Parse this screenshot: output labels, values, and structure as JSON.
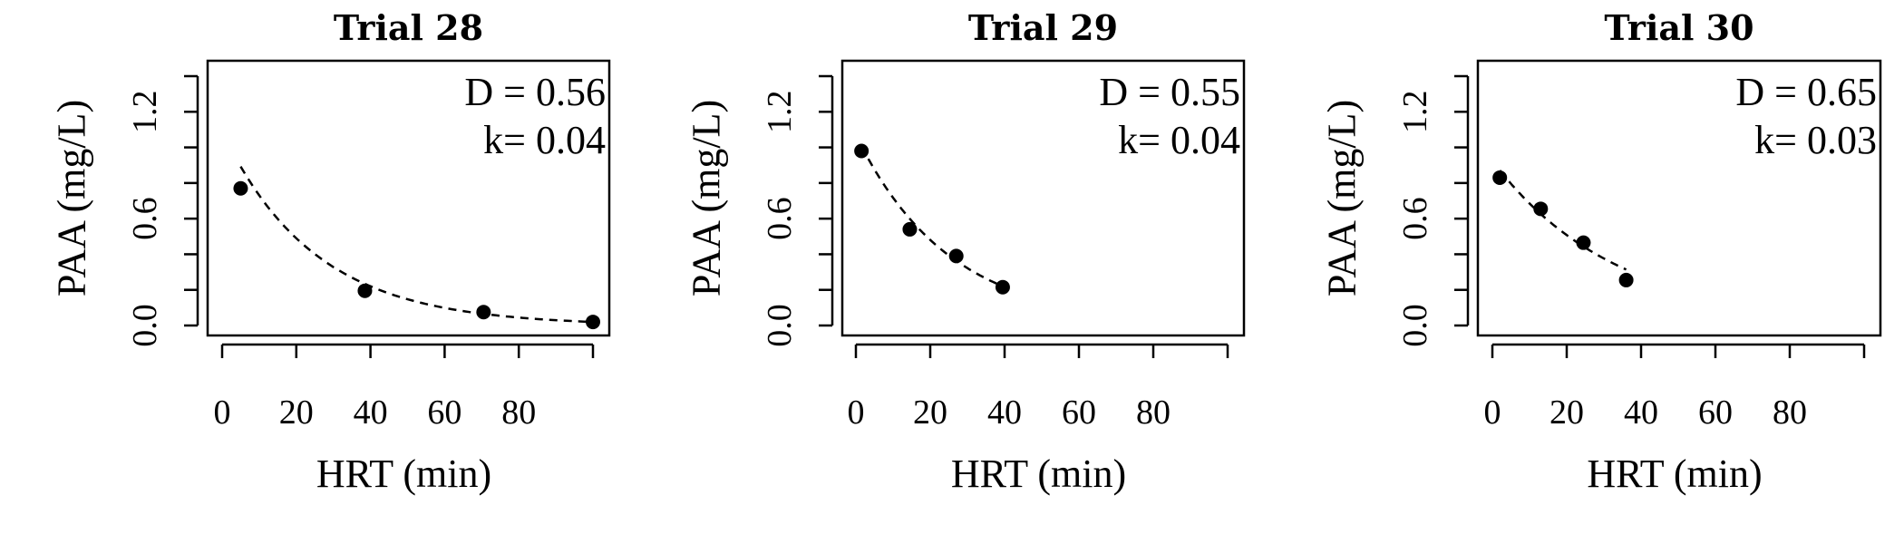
{
  "chart_data": [
    {
      "type": "scatter",
      "title": "Trial 28",
      "xlabel": "HRT (min)",
      "ylabel": "PAA (mg/L)",
      "xlim": [
        0,
        100
      ],
      "ylim": [
        0,
        1.4
      ],
      "xticks": [
        0,
        20,
        40,
        60,
        80,
        100
      ],
      "xtick_labels": [
        "0",
        "20",
        "40",
        "60",
        "80",
        ""
      ],
      "yticks": [
        0,
        0.2,
        0.4,
        0.6,
        0.8,
        1.0,
        1.2,
        1.4
      ],
      "ytick_labels": [
        "0.0",
        "",
        "",
        "0.6",
        "",
        "",
        "1.2",
        ""
      ],
      "points": [
        {
          "x": 5,
          "y": 0.77
        },
        {
          "x": 38.5,
          "y": 0.195
        },
        {
          "x": 70.5,
          "y": 0.075
        },
        {
          "x": 100,
          "y": 0.02
        }
      ],
      "fit": {
        "type": "exponential decay",
        "D": 0.56,
        "k": 0.04,
        "C0": 1.09,
        "x_range": [
          5,
          100
        ]
      },
      "annotations": [
        "D = 0.56",
        "k= 0.04"
      ]
    },
    {
      "type": "scatter",
      "title": "Trial 29",
      "xlabel": "HRT (min)",
      "ylabel": "PAA (mg/L)",
      "xlim": [
        0,
        100
      ],
      "ylim": [
        0,
        1.4
      ],
      "xticks": [
        0,
        20,
        40,
        60,
        80,
        100
      ],
      "xtick_labels": [
        "0",
        "20",
        "40",
        "60",
        "80",
        ""
      ],
      "yticks": [
        0,
        0.2,
        0.4,
        0.6,
        0.8,
        1.0,
        1.2,
        1.4
      ],
      "ytick_labels": [
        "0.0",
        "",
        "",
        "0.6",
        "",
        "",
        "1.2",
        ""
      ],
      "points": [
        {
          "x": 1.5,
          "y": 0.98
        },
        {
          "x": 14.5,
          "y": 0.54
        },
        {
          "x": 27,
          "y": 0.39
        },
        {
          "x": 39.5,
          "y": 0.215
        }
      ],
      "fit": {
        "type": "exponential decay",
        "D": 0.55,
        "k": 0.04,
        "C0": 1.07,
        "x_range": [
          1.5,
          39.5
        ]
      },
      "annotations": [
        "D = 0.55",
        "k= 0.04"
      ]
    },
    {
      "type": "scatter",
      "title": "Trial 30",
      "xlabel": "HRT (min)",
      "ylabel": "PAA (mg/L)",
      "xlim": [
        0,
        100
      ],
      "ylim": [
        0,
        1.4
      ],
      "xticks": [
        0,
        20,
        40,
        60,
        80,
        100
      ],
      "xtick_labels": [
        "0",
        "20",
        "40",
        "60",
        "80",
        ""
      ],
      "yticks": [
        0,
        0.2,
        0.4,
        0.6,
        0.8,
        1.0,
        1.2,
        1.4
      ],
      "ytick_labels": [
        "0.0",
        "",
        "",
        "0.6",
        "",
        "",
        "1.2",
        ""
      ],
      "points": [
        {
          "x": 2,
          "y": 0.83
        },
        {
          "x": 13,
          "y": 0.655
        },
        {
          "x": 24.5,
          "y": 0.465
        },
        {
          "x": 36,
          "y": 0.255
        }
      ],
      "fit": {
        "type": "exponential decay",
        "D": 0.65,
        "k": 0.03,
        "C0": 0.925,
        "x_range": [
          2,
          36
        ]
      },
      "annotations": [
        "D = 0.65",
        "k= 0.03"
      ]
    }
  ]
}
